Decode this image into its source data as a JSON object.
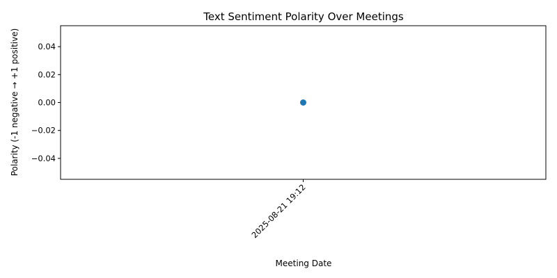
{
  "chart_data": {
    "type": "scatter",
    "title": "Text Sentiment Polarity Over Meetings",
    "xlabel": "Meeting Date",
    "ylabel": "Polarity (-1 negative → +1 positive)",
    "x": [
      "2025-08-21 19:12"
    ],
    "series": [
      {
        "values": [
          0.0
        ],
        "color": "#1f77b4"
      }
    ],
    "ylim": [
      -0.055,
      0.055
    ],
    "yticks": [
      0.04,
      0.02,
      0.0,
      -0.02,
      -0.04
    ],
    "ytick_labels": [
      "0.04",
      "0.02",
      "0.00",
      "−0.02",
      "−0.04"
    ],
    "grid": false,
    "legend": "none"
  }
}
